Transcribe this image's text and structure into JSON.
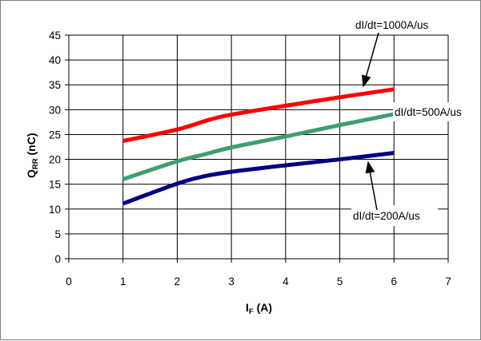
{
  "chart_data": {
    "type": "line",
    "xlim": [
      0,
      7
    ],
    "ylim": [
      0,
      45
    ],
    "xticks": [
      "0",
      "1",
      "2",
      "3",
      "4",
      "5",
      "6",
      "7"
    ],
    "yticks": [
      "0",
      "5",
      "10",
      "15",
      "20",
      "25",
      "30",
      "35",
      "40",
      "45"
    ],
    "grid": "horizontal and vertical",
    "xlabel": {
      "main": "I",
      "sub": "F",
      "unit": " (A)"
    },
    "ylabel": {
      "main": "Q",
      "sub": "RR",
      "unit": " (nC)"
    },
    "series": [
      {
        "name": "dI/dt=1000A/us",
        "color": "#ff0000",
        "x": [
          1,
          2,
          2.6,
          3,
          4,
          5,
          6
        ],
        "y": [
          23.7,
          26.0,
          28.0,
          29.0,
          30.8,
          32.5,
          34.1
        ]
      },
      {
        "name": "dI/dt=500A/us",
        "color": "#3f9e6e",
        "x": [
          1,
          2,
          2.5,
          3,
          4,
          5,
          6
        ],
        "y": [
          16.0,
          19.6,
          21.0,
          22.4,
          24.6,
          26.9,
          29.1
        ]
      },
      {
        "name": "dI/dt=200A/us",
        "color": "#000080",
        "x": [
          1,
          2,
          2.5,
          3,
          4,
          5,
          6
        ],
        "y": [
          11.1,
          15.1,
          16.6,
          17.5,
          18.8,
          20.0,
          21.3
        ]
      }
    ]
  }
}
